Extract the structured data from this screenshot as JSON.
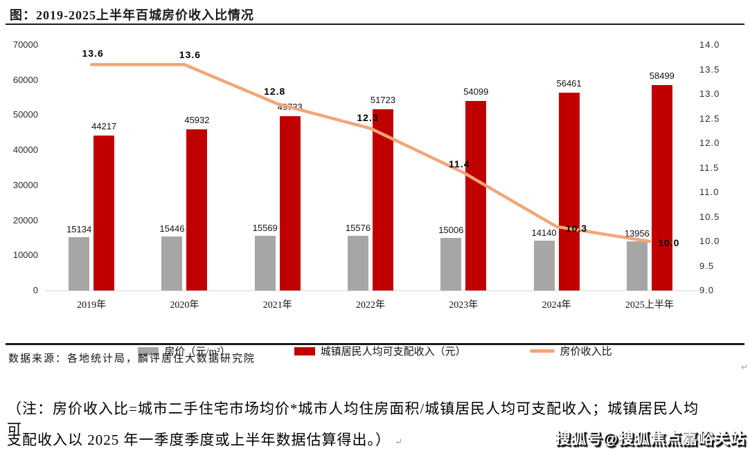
{
  "page": {
    "title": "图：2019-2025上半年百城房价收入比情况",
    "source": "数据来源：各地统计局，麟评居住大数据研究院",
    "note_line1": "（注：房价收入比=城市二手住宅市场均价*城市人均住房面积/城镇居民人均可支配收入；城镇居民人均可",
    "note_line2": "支配收入以 2025 年一季度季度或上半年数据估算得出。）",
    "paragraph_mark": "↵",
    "watermark": "搜狐号@搜狐焦点嘉峪关站"
  },
  "chart_data": {
    "type": "bar",
    "subtype": "grouped-bars-with-line",
    "title": "2019-2025上半年百城房价收入比情况",
    "categories": [
      "2019年",
      "2020年",
      "2021年",
      "2022年",
      "2023年",
      "2024年",
      "2025上半年"
    ],
    "series": [
      {
        "name": "房价（元/m²）",
        "type": "bar",
        "axis": "left",
        "color": "#A6A6A6",
        "values": [
          15134,
          15446,
          15569,
          15576,
          15006,
          14140,
          13956
        ]
      },
      {
        "name": "城镇居民人均可支配收入（元）",
        "type": "bar",
        "axis": "left",
        "color": "#C00000",
        "values": [
          44217,
          45932,
          49733,
          51723,
          54099,
          56461,
          58499
        ]
      },
      {
        "name": "房价收入比",
        "type": "line",
        "axis": "right",
        "color": "#F2A679",
        "values": [
          13.6,
          13.6,
          12.8,
          12.3,
          11.4,
          10.3,
          10.0
        ]
      }
    ],
    "left_axis": {
      "min": 0,
      "max": 70000,
      "step": 10000,
      "ticks": [
        "0",
        "10000",
        "20000",
        "30000",
        "40000",
        "50000",
        "60000",
        "70000"
      ]
    },
    "right_axis": {
      "min": 9.0,
      "max": 14.0,
      "step": 0.5,
      "ticks": [
        "9.0",
        "9.5",
        "10.0",
        "10.5",
        "11.0",
        "11.5",
        "12.0",
        "12.5",
        "13.0",
        "13.5",
        "14.0"
      ]
    },
    "grid": false,
    "legend_position": "bottom"
  }
}
